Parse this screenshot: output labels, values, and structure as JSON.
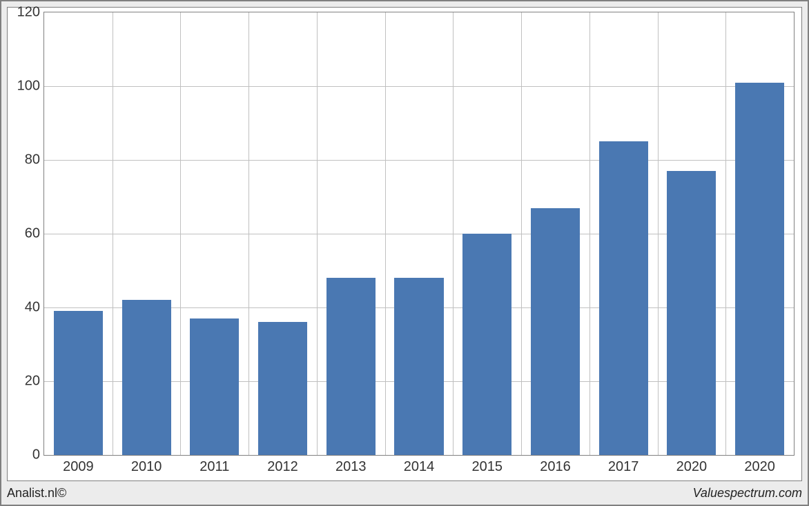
{
  "chart": {
    "type": "bar",
    "categories": [
      "2009",
      "2010",
      "2011",
      "2012",
      "2013",
      "2014",
      "2015",
      "2016",
      "2017",
      "2020",
      "2020"
    ],
    "values": [
      39,
      42,
      37,
      36,
      48,
      48,
      60,
      67,
      85,
      77,
      101
    ],
    "bar_color": "#4a78b2",
    "background_color": "#ffffff",
    "outer_background": "#ececec",
    "grid_color": "#c0c0c0",
    "border_color": "#808080",
    "ylim": [
      0,
      120
    ],
    "ytick_step": 20,
    "bar_width_ratio": 0.72,
    "axis_fontsize": 20,
    "axis_color": "#333333"
  },
  "footer": {
    "left": "Analist.nl©",
    "right": "Valuespectrum.com"
  }
}
